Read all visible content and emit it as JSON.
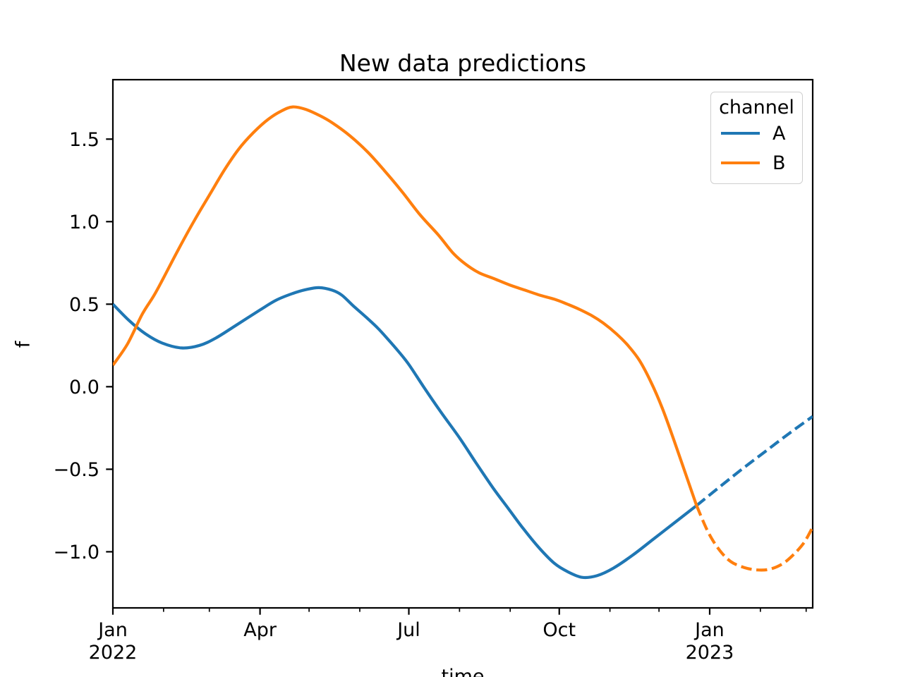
{
  "chart_data": {
    "type": "line",
    "title": "New data predictions",
    "xlabel": "time",
    "ylabel": "f",
    "grid": false,
    "background": "#ffffff",
    "x_axis": {
      "label": "time",
      "unit": "days since 2022-01-01",
      "range_days": [
        0,
        428
      ],
      "major_ticks": [
        {
          "day": 0,
          "lines": [
            "Jan",
            "2022"
          ]
        },
        {
          "day": 90,
          "lines": [
            "Apr"
          ]
        },
        {
          "day": 181,
          "lines": [
            "Jul"
          ]
        },
        {
          "day": 273,
          "lines": [
            "Oct"
          ]
        },
        {
          "day": 365,
          "lines": [
            "Jan",
            "2023"
          ]
        }
      ],
      "minor_tick_days": [
        31,
        59,
        120,
        151,
        212,
        243,
        304,
        334,
        396,
        424
      ]
    },
    "y_axis": {
      "label": "f",
      "range": [
        -1.34,
        1.86
      ],
      "ticks": [
        {
          "value": -1.0,
          "label": "−1.0"
        },
        {
          "value": -0.5,
          "label": "−0.5"
        },
        {
          "value": 0.0,
          "label": "0.0"
        },
        {
          "value": 0.5,
          "label": "0.5"
        },
        {
          "value": 1.0,
          "label": "1.0"
        },
        {
          "value": 1.5,
          "label": "1.5"
        }
      ]
    },
    "legend": {
      "title": "channel",
      "position": "upper right",
      "entries": [
        {
          "label": "A",
          "color": "#1f77b4"
        },
        {
          "label": "B",
          "color": "#ff7f0e"
        }
      ]
    },
    "series": [
      {
        "name": "A observed",
        "channel": "A",
        "segment": "observed",
        "line_style": "solid",
        "color": "#1f77b4",
        "points": [
          [
            0,
            0.5
          ],
          [
            10,
            0.4
          ],
          [
            20,
            0.32
          ],
          [
            30,
            0.265
          ],
          [
            42,
            0.235
          ],
          [
            53,
            0.25
          ],
          [
            63,
            0.295
          ],
          [
            75,
            0.37
          ],
          [
            90,
            0.465
          ],
          [
            100,
            0.525
          ],
          [
            110,
            0.565
          ],
          [
            118,
            0.588
          ],
          [
            126,
            0.6
          ],
          [
            134,
            0.585
          ],
          [
            140,
            0.555
          ],
          [
            147,
            0.49
          ],
          [
            155,
            0.42
          ],
          [
            162,
            0.355
          ],
          [
            168,
            0.29
          ],
          [
            175,
            0.21
          ],
          [
            181,
            0.135
          ],
          [
            190,
            0.0
          ],
          [
            200,
            -0.145
          ],
          [
            212,
            -0.31
          ],
          [
            222,
            -0.46
          ],
          [
            233,
            -0.62
          ],
          [
            242,
            -0.74
          ],
          [
            251,
            -0.86
          ],
          [
            261,
            -0.98
          ],
          [
            270,
            -1.07
          ],
          [
            278,
            -1.12
          ],
          [
            287,
            -1.155
          ],
          [
            296,
            -1.145
          ],
          [
            306,
            -1.1
          ],
          [
            318,
            -1.02
          ],
          [
            331,
            -0.92
          ],
          [
            344,
            -0.82
          ],
          [
            357,
            -0.72
          ]
        ]
      },
      {
        "name": "A prediction",
        "channel": "A",
        "segment": "prediction",
        "line_style": "dashed",
        "color": "#1f77b4",
        "points": [
          [
            357,
            -0.72
          ],
          [
            372,
            -0.6
          ],
          [
            386,
            -0.49
          ],
          [
            400,
            -0.385
          ],
          [
            414,
            -0.28
          ],
          [
            428,
            -0.18
          ]
        ]
      },
      {
        "name": "B observed",
        "channel": "B",
        "segment": "observed",
        "line_style": "solid",
        "color": "#ff7f0e",
        "points": [
          [
            0,
            0.13
          ],
          [
            9,
            0.26
          ],
          [
            18,
            0.44
          ],
          [
            25,
            0.55
          ],
          [
            31,
            0.66
          ],
          [
            40,
            0.83
          ],
          [
            50,
            1.01
          ],
          [
            59,
            1.16
          ],
          [
            68,
            1.31
          ],
          [
            77,
            1.44
          ],
          [
            86,
            1.54
          ],
          [
            95,
            1.62
          ],
          [
            103,
            1.67
          ],
          [
            110,
            1.695
          ],
          [
            118,
            1.68
          ],
          [
            127,
            1.64
          ],
          [
            134,
            1.6
          ],
          [
            145,
            1.52
          ],
          [
            156,
            1.42
          ],
          [
            166,
            1.31
          ],
          [
            177,
            1.18
          ],
          [
            188,
            1.04
          ],
          [
            199,
            0.92
          ],
          [
            208,
            0.81
          ],
          [
            216,
            0.74
          ],
          [
            224,
            0.69
          ],
          [
            233,
            0.655
          ],
          [
            243,
            0.615
          ],
          [
            252,
            0.585
          ],
          [
            261,
            0.555
          ],
          [
            270,
            0.53
          ],
          [
            278,
            0.5
          ],
          [
            285,
            0.47
          ],
          [
            293,
            0.43
          ],
          [
            300,
            0.385
          ],
          [
            308,
            0.32
          ],
          [
            315,
            0.25
          ],
          [
            322,
            0.16
          ],
          [
            329,
            0.03
          ],
          [
            336,
            -0.13
          ],
          [
            343,
            -0.32
          ],
          [
            350,
            -0.52
          ],
          [
            357,
            -0.72
          ]
        ]
      },
      {
        "name": "B prediction",
        "channel": "B",
        "segment": "prediction",
        "line_style": "dashed",
        "color": "#ff7f0e",
        "points": [
          [
            357,
            -0.72
          ],
          [
            364,
            -0.88
          ],
          [
            371,
            -0.99
          ],
          [
            378,
            -1.06
          ],
          [
            386,
            -1.095
          ],
          [
            394,
            -1.11
          ],
          [
            402,
            -1.105
          ],
          [
            410,
            -1.07
          ],
          [
            417,
            -1.01
          ],
          [
            423,
            -0.94
          ],
          [
            428,
            -0.85
          ]
        ]
      }
    ]
  }
}
